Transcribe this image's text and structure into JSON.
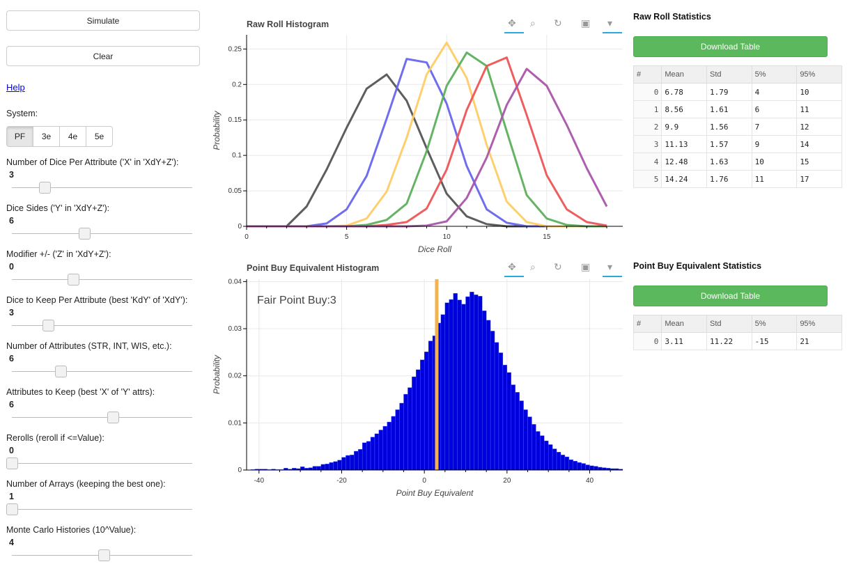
{
  "controls": {
    "simulate_label": "Simulate",
    "clear_label": "Clear",
    "help_label": "Help",
    "system_label": "System:",
    "systems": [
      "PF",
      "3e",
      "4e",
      "5e"
    ],
    "system_selected": "PF",
    "sliders": [
      {
        "label": "Number of Dice Per Attribute ('X' in 'XdY+Z'):",
        "value": "3",
        "level": 0.18
      },
      {
        "label": "Dice Sides ('Y' in 'XdY+Z'):",
        "value": "6",
        "level": 0.4
      },
      {
        "label": "Modifier +/- ('Z' in 'XdY+Z'):",
        "value": "0",
        "level": 0.34
      },
      {
        "label": "Dice to Keep Per Attribute (best 'KdY' of 'XdY'):",
        "value": "3",
        "level": 0.2
      },
      {
        "label": "Number of Attributes (STR, INT, WIS, etc.):",
        "value": "6",
        "level": 0.27
      },
      {
        "label": "Attributes to Keep (best 'X' of 'Y' attrs):",
        "value": "6",
        "level": 0.56
      },
      {
        "label": "Rerolls (reroll if <=Value):",
        "value": "0",
        "level": 0.0
      },
      {
        "label": "Number of Arrays (keeping the best one):",
        "value": "1",
        "level": 0.0
      },
      {
        "label": "Monte Carlo Histories (10^Value):",
        "value": "4",
        "level": 0.51
      }
    ]
  },
  "raw_plot": {
    "title": "Raw Roll Histogram",
    "chart_data": {
      "type": "line",
      "xlabel": "Dice Roll",
      "ylabel": "Probability",
      "xlim": [
        0,
        18.8
      ],
      "ylim": [
        0,
        0.27
      ],
      "xticks": [
        0,
        5,
        10,
        15
      ],
      "yticks": [
        0,
        0.05,
        0.1,
        0.15,
        0.2,
        0.25
      ],
      "ytick_labels": [
        "0",
        "0.05",
        "0.1",
        "0.15",
        "0.2",
        "0.25"
      ],
      "grid": true,
      "series": [
        {
          "color": "#555555",
          "x": [
            0,
            1,
            2,
            3,
            4,
            5,
            6,
            7,
            8,
            9,
            10,
            11,
            12,
            13,
            14,
            15,
            16,
            17,
            18
          ],
          "y": [
            0,
            0,
            0,
            0.028,
            0.08,
            0.139,
            0.194,
            0.214,
            0.177,
            0.11,
            0.046,
            0.014,
            0.003,
            0,
            0,
            0,
            0,
            0,
            0
          ]
        },
        {
          "color": "#6666ee",
          "x": [
            0,
            1,
            2,
            3,
            4,
            5,
            6,
            7,
            8,
            9,
            10,
            11,
            12,
            13,
            14,
            15,
            16,
            17,
            18
          ],
          "y": [
            0,
            0,
            0,
            0,
            0.004,
            0.024,
            0.071,
            0.152,
            0.236,
            0.231,
            0.173,
            0.085,
            0.024,
            0.005,
            0,
            0,
            0,
            0,
            0
          ]
        },
        {
          "color": "#ffcc66",
          "x": [
            0,
            1,
            2,
            3,
            4,
            5,
            6,
            7,
            8,
            9,
            10,
            11,
            12,
            13,
            14,
            15,
            16,
            17,
            18
          ],
          "y": [
            0,
            0,
            0,
            0,
            0,
            0.001,
            0.011,
            0.049,
            0.125,
            0.214,
            0.259,
            0.209,
            0.115,
            0.035,
            0.006,
            0,
            0,
            0,
            0
          ]
        },
        {
          "color": "#5cb05c",
          "x": [
            0,
            1,
            2,
            3,
            4,
            5,
            6,
            7,
            8,
            9,
            10,
            11,
            12,
            13,
            14,
            15,
            16,
            17,
            18
          ],
          "y": [
            0,
            0,
            0,
            0,
            0,
            0,
            0.002,
            0.009,
            0.032,
            0.106,
            0.198,
            0.245,
            0.226,
            0.134,
            0.044,
            0.011,
            0.002,
            0,
            0
          ]
        },
        {
          "color": "#ee5555",
          "x": [
            0,
            1,
            2,
            3,
            4,
            5,
            6,
            7,
            8,
            9,
            10,
            11,
            12,
            13,
            14,
            15,
            16,
            17,
            18
          ],
          "y": [
            0,
            0,
            0,
            0,
            0,
            0,
            0,
            0.002,
            0.006,
            0.025,
            0.08,
            0.164,
            0.226,
            0.238,
            0.157,
            0.072,
            0.024,
            0.006,
            0.001
          ]
        },
        {
          "color": "#aa55aa",
          "x": [
            0,
            1,
            2,
            3,
            4,
            5,
            6,
            7,
            8,
            9,
            10,
            11,
            12,
            13,
            14,
            15,
            16,
            17,
            18
          ],
          "y": [
            0,
            0,
            0,
            0,
            0,
            0,
            0,
            0,
            0,
            0.001,
            0.007,
            0.04,
            0.097,
            0.171,
            0.222,
            0.198,
            0.143,
            0.082,
            0.028
          ]
        }
      ]
    }
  },
  "pb_plot": {
    "title": "Point Buy Equivalent Histogram",
    "annotation": "Fair Point Buy:3",
    "chart_data": {
      "type": "bar",
      "xlabel": "Point Buy Equivalent",
      "ylabel": "Probability",
      "xlim": [
        -43,
        48
      ],
      "ylim": [
        0,
        0.0405
      ],
      "xticks": [
        -40,
        -20,
        0,
        20,
        40
      ],
      "yticks": [
        0,
        0.01,
        0.02,
        0.03,
        0.04
      ],
      "ytick_labels": [
        "0",
        "0.01",
        "0.02",
        "0.03",
        "0.04"
      ],
      "fair_point_buy": 3,
      "bar_color": "#0000dd",
      "bin_width": 1,
      "bins_start": -42,
      "values": [
        0.0001,
        0.0002,
        0.0002,
        0.0002,
        0.0001,
        0.0002,
        0.0001,
        0.0001,
        0.0004,
        0.0002,
        0.0004,
        0.0003,
        0.0007,
        0.0004,
        0.0005,
        0.0008,
        0.0008,
        0.0012,
        0.0013,
        0.0016,
        0.0018,
        0.0021,
        0.0027,
        0.0031,
        0.0032,
        0.004,
        0.0044,
        0.0058,
        0.0061,
        0.007,
        0.0077,
        0.0085,
        0.0093,
        0.0102,
        0.0114,
        0.0128,
        0.0142,
        0.0161,
        0.0175,
        0.0198,
        0.0213,
        0.0234,
        0.0251,
        0.0274,
        0.0285,
        0.0312,
        0.033,
        0.0355,
        0.0362,
        0.0375,
        0.0361,
        0.0352,
        0.0368,
        0.0378,
        0.0372,
        0.0369,
        0.0338,
        0.0318,
        0.0295,
        0.0271,
        0.0249,
        0.0223,
        0.0207,
        0.0181,
        0.0165,
        0.0147,
        0.0128,
        0.0113,
        0.0097,
        0.0082,
        0.0073,
        0.0062,
        0.0054,
        0.0045,
        0.0038,
        0.0032,
        0.0028,
        0.0022,
        0.0019,
        0.0016,
        0.0014,
        0.0011,
        0.0009,
        0.0008,
        0.0006,
        0.0005,
        0.0004,
        0.0003,
        0.0003,
        0.0002
      ]
    }
  },
  "raw_stats": {
    "title": "Raw Roll Statistics",
    "download_label": "Download Table",
    "columns": [
      "#",
      "Mean",
      "Std",
      "5%",
      "95%"
    ],
    "rows": [
      [
        "0",
        "6.78",
        "1.79",
        "4",
        "10"
      ],
      [
        "1",
        "8.56",
        "1.61",
        "6",
        "11"
      ],
      [
        "2",
        "9.9",
        "1.56",
        "7",
        "12"
      ],
      [
        "3",
        "11.13",
        "1.57",
        "9",
        "14"
      ],
      [
        "4",
        "12.48",
        "1.63",
        "10",
        "15"
      ],
      [
        "5",
        "14.24",
        "1.76",
        "11",
        "17"
      ]
    ]
  },
  "pb_stats": {
    "title": "Point Buy Equivalent Statistics",
    "download_label": "Download Table",
    "columns": [
      "#",
      "Mean",
      "Std",
      "5%",
      "95%"
    ],
    "rows": [
      [
        "0",
        "3.11",
        "11.22",
        "-15",
        "21"
      ]
    ]
  }
}
